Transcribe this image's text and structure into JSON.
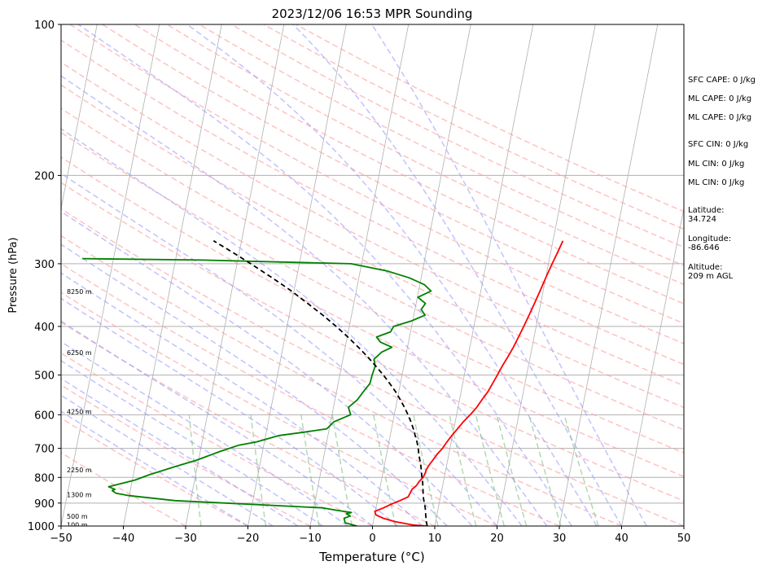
{
  "chart_data": {
    "type": "line",
    "title": "2023/12/06 16:53 MPR Sounding",
    "xlabel": "Temperature (°C)",
    "ylabel": "Pressure (hPa)",
    "xlim": [
      -50,
      50
    ],
    "ylim": [
      1000,
      100
    ],
    "y_scale": "log",
    "x_ticks": [
      -50,
      -40,
      -30,
      -20,
      -10,
      0,
      10,
      20,
      30,
      40,
      50
    ],
    "y_ticks": [
      100,
      200,
      300,
      400,
      500,
      600,
      700,
      800,
      900,
      1000
    ],
    "grid": true,
    "height_labels": [
      {
        "text": "100 m",
        "p": 995
      },
      {
        "text": "500 m",
        "p": 956
      },
      {
        "text": "1300 m",
        "p": 866
      },
      {
        "text": "2250 m",
        "p": 772
      },
      {
        "text": "4250 m",
        "p": 591
      },
      {
        "text": "6250 m",
        "p": 451
      },
      {
        "text": "8250 m",
        "p": 341
      }
    ],
    "series": [
      {
        "role": "temperature",
        "color": "#ff0000",
        "p": [
          1000,
          995,
          980,
          965,
          950,
          935,
          920,
          905,
          890,
          875,
          860,
          845,
          830,
          815,
          800,
          785,
          770,
          755,
          740,
          720,
          700,
          680,
          660,
          640,
          620,
          600,
          580,
          560,
          540,
          520,
          500,
          480,
          460,
          440,
          420,
          400,
          380,
          360,
          340,
          320,
          300,
          285,
          270
        ],
        "x": [
          8.8,
          6.5,
          3.5,
          1.5,
          0.2,
          -0.1,
          1.2,
          2.3,
          3.6,
          4.8,
          5.0,
          5.2,
          5.8,
          6.1,
          6.6,
          6.8,
          6.9,
          7.2,
          7.6,
          8.1,
          8.8,
          9.3,
          9.9,
          10.6,
          11.3,
          12.2,
          13.0,
          13.6,
          14.3,
          14.8,
          15.3,
          15.8,
          16.4,
          17.0,
          17.5,
          18.0,
          18.5,
          19.0,
          19.5,
          20.0,
          20.6,
          21.1,
          21.6
        ]
      },
      {
        "role": "dewpoint",
        "color": "#008000",
        "p": [
          1000,
          985,
          965,
          955,
          945,
          940,
          930,
          920,
          890,
          870,
          860,
          850,
          845,
          835,
          820,
          810,
          790,
          760,
          740,
          710,
          690,
          680,
          660,
          650,
          640,
          620,
          600,
          580,
          560,
          540,
          520,
          500,
          480,
          465,
          450,
          440,
          430,
          420,
          410,
          400,
          390,
          380,
          370,
          360,
          350,
          340,
          330,
          320,
          310,
          300,
          295,
          293
        ],
        "x": [
          -2.5,
          -4.5,
          -4.8,
          -3.9,
          -4.6,
          -3.8,
          -6.3,
          -8.5,
          -32.5,
          -40.0,
          -42.2,
          -42.9,
          -42.5,
          -43.6,
          -41.2,
          -39.6,
          -37.4,
          -33.4,
          -30.4,
          -26.8,
          -24.0,
          -21.3,
          -17.8,
          -14.0,
          -10.4,
          -9.5,
          -7.0,
          -7.6,
          -6.4,
          -5.7,
          -4.9,
          -4.8,
          -4.6,
          -5.0,
          -4.0,
          -2.5,
          -4.5,
          -5.3,
          -3.2,
          -2.9,
          -0.2,
          1.8,
          1.0,
          1.5,
          0.1,
          2.0,
          0.7,
          -1.9,
          -5.7,
          -11.7,
          -35.5,
          -55.0
        ]
      },
      {
        "role": "parcel",
        "color": "#000000",
        "dash": "6,4",
        "p": [
          1000,
          980,
          960,
          940,
          920,
          900,
          880,
          860,
          840,
          820,
          800,
          760,
          720,
          700,
          680,
          660,
          640,
          620,
          600,
          580,
          560,
          540,
          520,
          500,
          480,
          460,
          440,
          420,
          400,
          380,
          360,
          340,
          320,
          300,
          285,
          270
        ],
        "x": [
          8.8,
          8.5,
          8.3,
          8.1,
          7.9,
          7.6,
          7.3,
          7.1,
          6.9,
          6.7,
          6.4,
          5.9,
          5.2,
          4.9,
          4.5,
          4.0,
          3.5,
          2.9,
          2.2,
          1.4,
          0.5,
          -0.5,
          -1.7,
          -3.0,
          -4.5,
          -6.1,
          -7.9,
          -9.9,
          -12.1,
          -14.6,
          -17.4,
          -20.4,
          -23.9,
          -27.8,
          -31.0,
          -34.5
        ]
      }
    ]
  },
  "annotations": {
    "sfc_cape": "SFC CAPE: 0 J/kg",
    "ml_cape": "ML CAPE: 0 J/kg",
    "mu_cape": "ML CAPE: 0 J/kg",
    "sfc_cin": "SFC CIN: 0 J/kg",
    "ml_cin": "ML CIN: 0 J/kg",
    "mu_cin": "ML CIN: 0 J/kg",
    "latitude_label": "Latitude:",
    "latitude_value": "34.724",
    "longitude_label": "Longitude:",
    "longitude_value": "-86.646",
    "altitude_label": "Altitude:",
    "altitude_value": "209 m AGL"
  },
  "colors": {
    "isotherm": "#b0b0b0",
    "dry_adiabat": "#ff9999",
    "moist_adiabat": "#9999ff",
    "mixing_ratio": "#80c080"
  }
}
